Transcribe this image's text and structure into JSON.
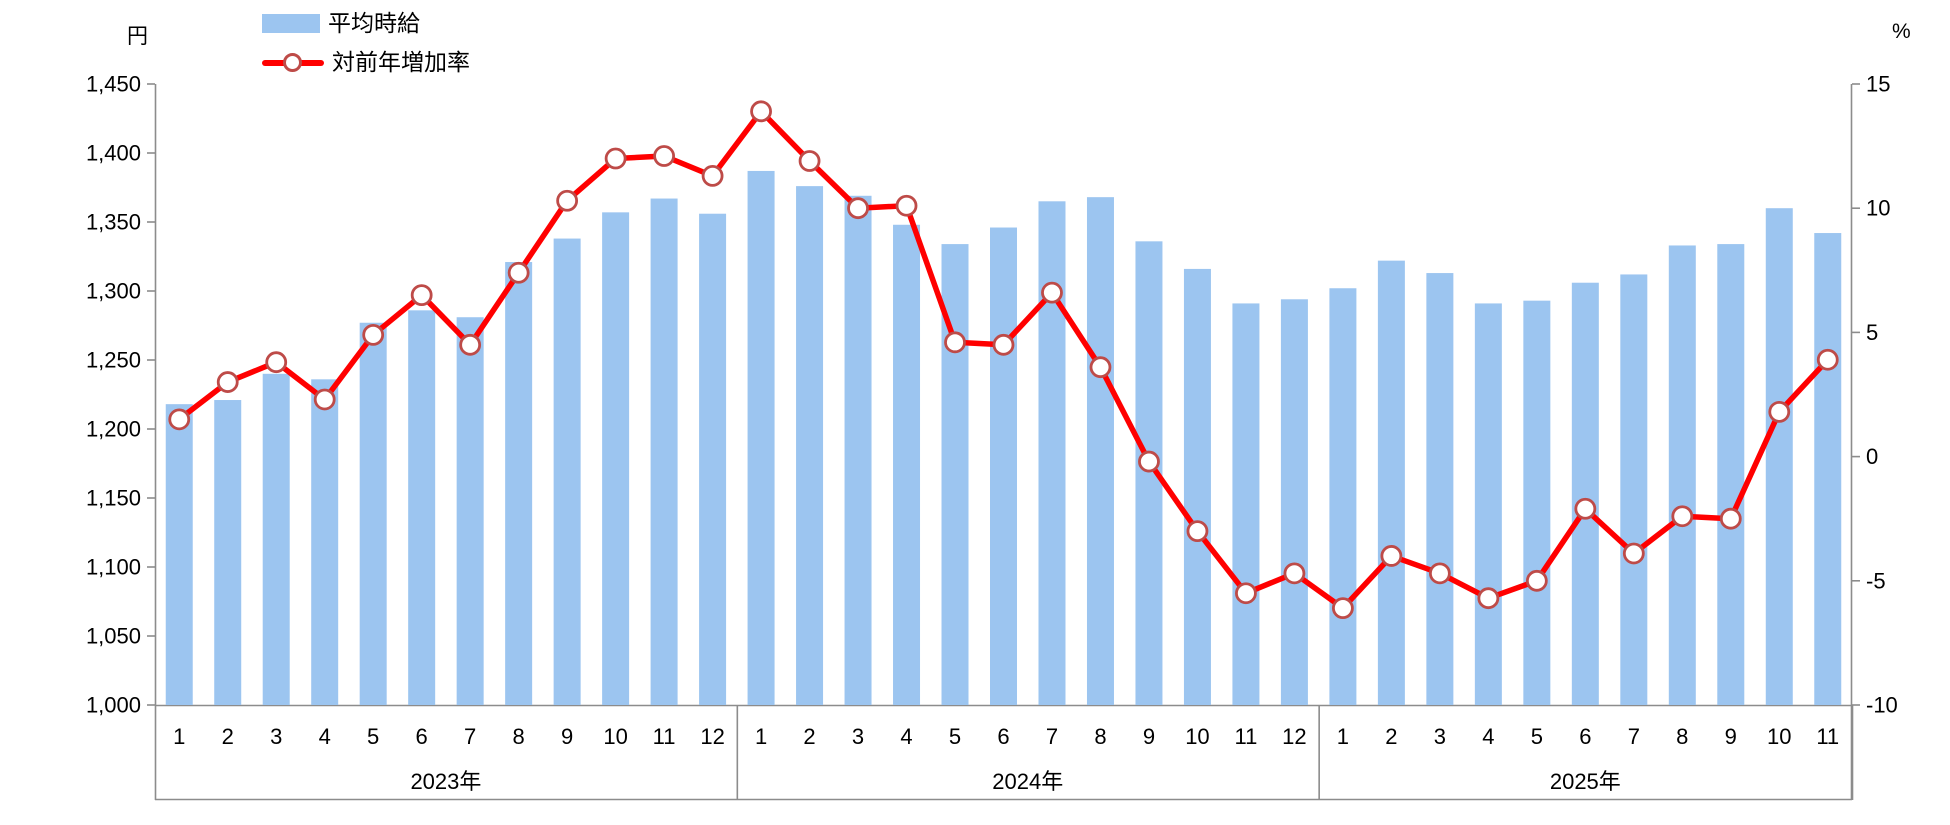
{
  "chart_data": {
    "type": "combo-bar-line",
    "legend": [
      {
        "label": "平均時給",
        "type": "bar"
      },
      {
        "label": "対前年増加率",
        "type": "line"
      }
    ],
    "left_axis": {
      "title": "円",
      "min": 1000,
      "max": 1450,
      "step": 50,
      "tick_labels": [
        "1,000",
        "1,050",
        "1,100",
        "1,150",
        "1,200",
        "1,250",
        "1,300",
        "1,350",
        "1,400",
        "1,450"
      ]
    },
    "right_axis": {
      "title": "%",
      "min": -10,
      "max": 15,
      "step": 5,
      "tick_labels": [
        "-10",
        "-5",
        "0",
        "5",
        "10",
        "15"
      ]
    },
    "x_axis": {
      "groups": [
        {
          "label": "2023年",
          "months": [
            "1",
            "2",
            "3",
            "4",
            "5",
            "6",
            "7",
            "8",
            "9",
            "10",
            "11",
            "12"
          ]
        },
        {
          "label": "2024年",
          "months": [
            "1",
            "2",
            "3",
            "4",
            "5",
            "6",
            "7",
            "8",
            "9",
            "10",
            "11",
            "12"
          ]
        },
        {
          "label": "2025年",
          "months": [
            "1",
            "2",
            "3",
            "4",
            "5",
            "6",
            "7",
            "8",
            "9",
            "10",
            "11"
          ]
        }
      ]
    },
    "series": [
      {
        "name": "平均時給",
        "type": "bar",
        "axis": "left",
        "color": "#9CC5F0",
        "values": [
          1218,
          1221,
          1240,
          1236,
          1277,
          1286,
          1281,
          1321,
          1338,
          1357,
          1367,
          1356,
          1387,
          1376,
          1369,
          1348,
          1334,
          1346,
          1365,
          1368,
          1336,
          1316,
          1291,
          1294,
          1302,
          1322,
          1313,
          1291,
          1293,
          1306,
          1312,
          1333,
          1334,
          1360,
          1342
        ]
      },
      {
        "name": "対前年増加率",
        "type": "line",
        "axis": "right",
        "color": "#FF0000",
        "marker_fill": "#FFFFFF",
        "marker_stroke": "#BE4B48",
        "values": [
          1.5,
          3.0,
          3.8,
          2.3,
          4.9,
          6.5,
          4.5,
          7.4,
          10.3,
          12.0,
          12.1,
          11.3,
          13.9,
          11.9,
          10.0,
          10.1,
          4.6,
          4.5,
          6.6,
          3.6,
          -0.2,
          -3.0,
          -5.5,
          -4.7,
          -6.1,
          -4.0,
          -4.7,
          -5.7,
          -5.0,
          -2.1,
          -3.9,
          -2.4,
          -2.5,
          1.8,
          3.9
        ]
      }
    ],
    "grid": "off",
    "legend_position": "top-left",
    "axis_color": "#8c8c8c",
    "text_color": "#000000"
  }
}
